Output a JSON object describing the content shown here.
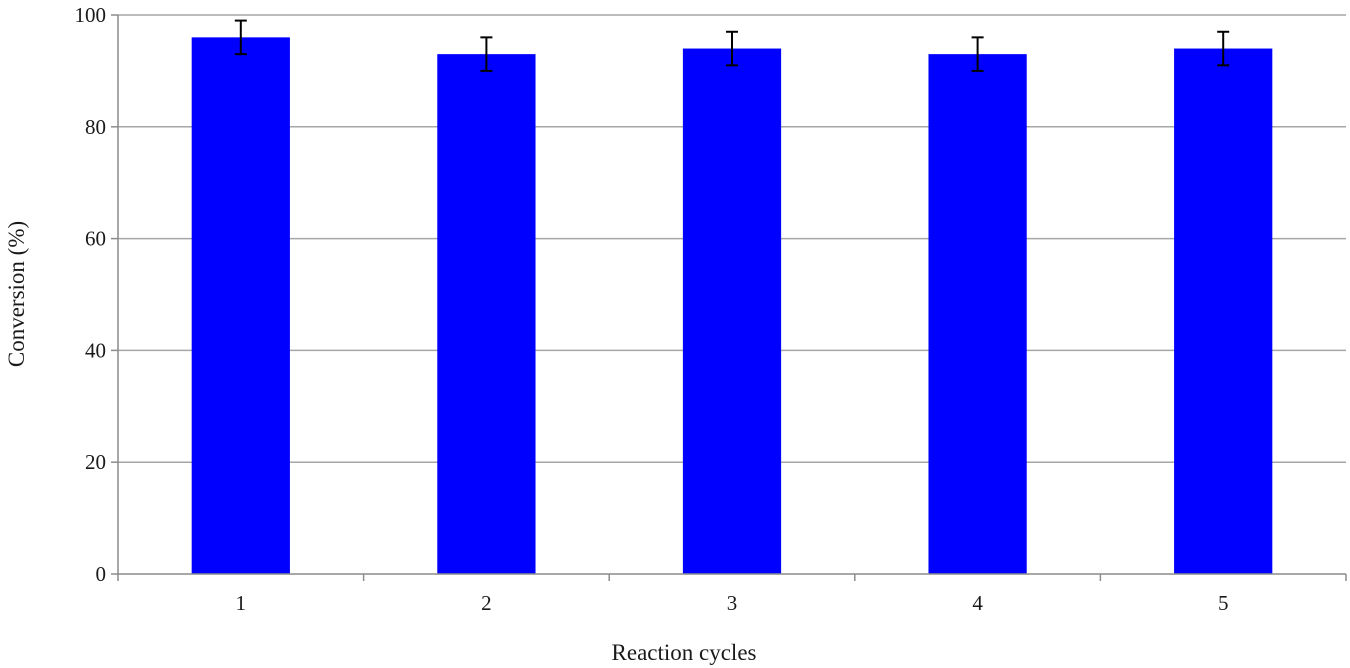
{
  "chart_data": {
    "type": "bar",
    "categories": [
      "1",
      "2",
      "3",
      "4",
      "5"
    ],
    "values": [
      96,
      93,
      94,
      93,
      94
    ],
    "error": [
      3,
      3,
      3,
      3,
      3
    ],
    "xlabel": "Reaction  cycles",
    "ylabel": "Conversion  (%)",
    "ylim": [
      0,
      100
    ],
    "yticks": [
      "0",
      "20",
      "40",
      "60",
      "80",
      "100"
    ],
    "grid": true,
    "legend": "none",
    "colors": {
      "bar": "#0000ff",
      "error_bar": "#000000",
      "grid": "#a6a6a6",
      "axis": "#8c8c8c"
    }
  }
}
